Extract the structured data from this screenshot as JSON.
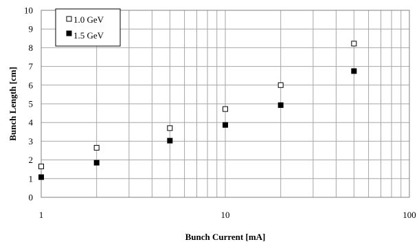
{
  "chart_data": {
    "type": "scatter",
    "title": "",
    "xlabel": "Bunch Current [mA]",
    "ylabel": "Bunch Length [cm]",
    "xscale": "log",
    "xlim": [
      1,
      100
    ],
    "ylim": [
      0,
      10
    ],
    "xticks": [
      "1",
      "10",
      "100"
    ],
    "yticks": [
      "0",
      "1",
      "2",
      "3",
      "4",
      "5",
      "6",
      "7",
      "8",
      "9",
      "10"
    ],
    "grid": true,
    "legend": "top-left",
    "series": [
      {
        "name": "1.0 GeV",
        "marker": "hollow-square",
        "color": "#000000",
        "x": [
          1,
          2,
          5,
          10,
          20,
          50
        ],
        "y": [
          1.65,
          2.65,
          3.7,
          4.72,
          6.0,
          8.22
        ]
      },
      {
        "name": "1.5 GeV",
        "marker": "filled-square",
        "color": "#000000",
        "x": [
          1,
          2,
          5,
          10,
          20,
          50
        ],
        "y": [
          1.08,
          1.85,
          3.03,
          3.87,
          4.93,
          6.75
        ]
      }
    ]
  }
}
